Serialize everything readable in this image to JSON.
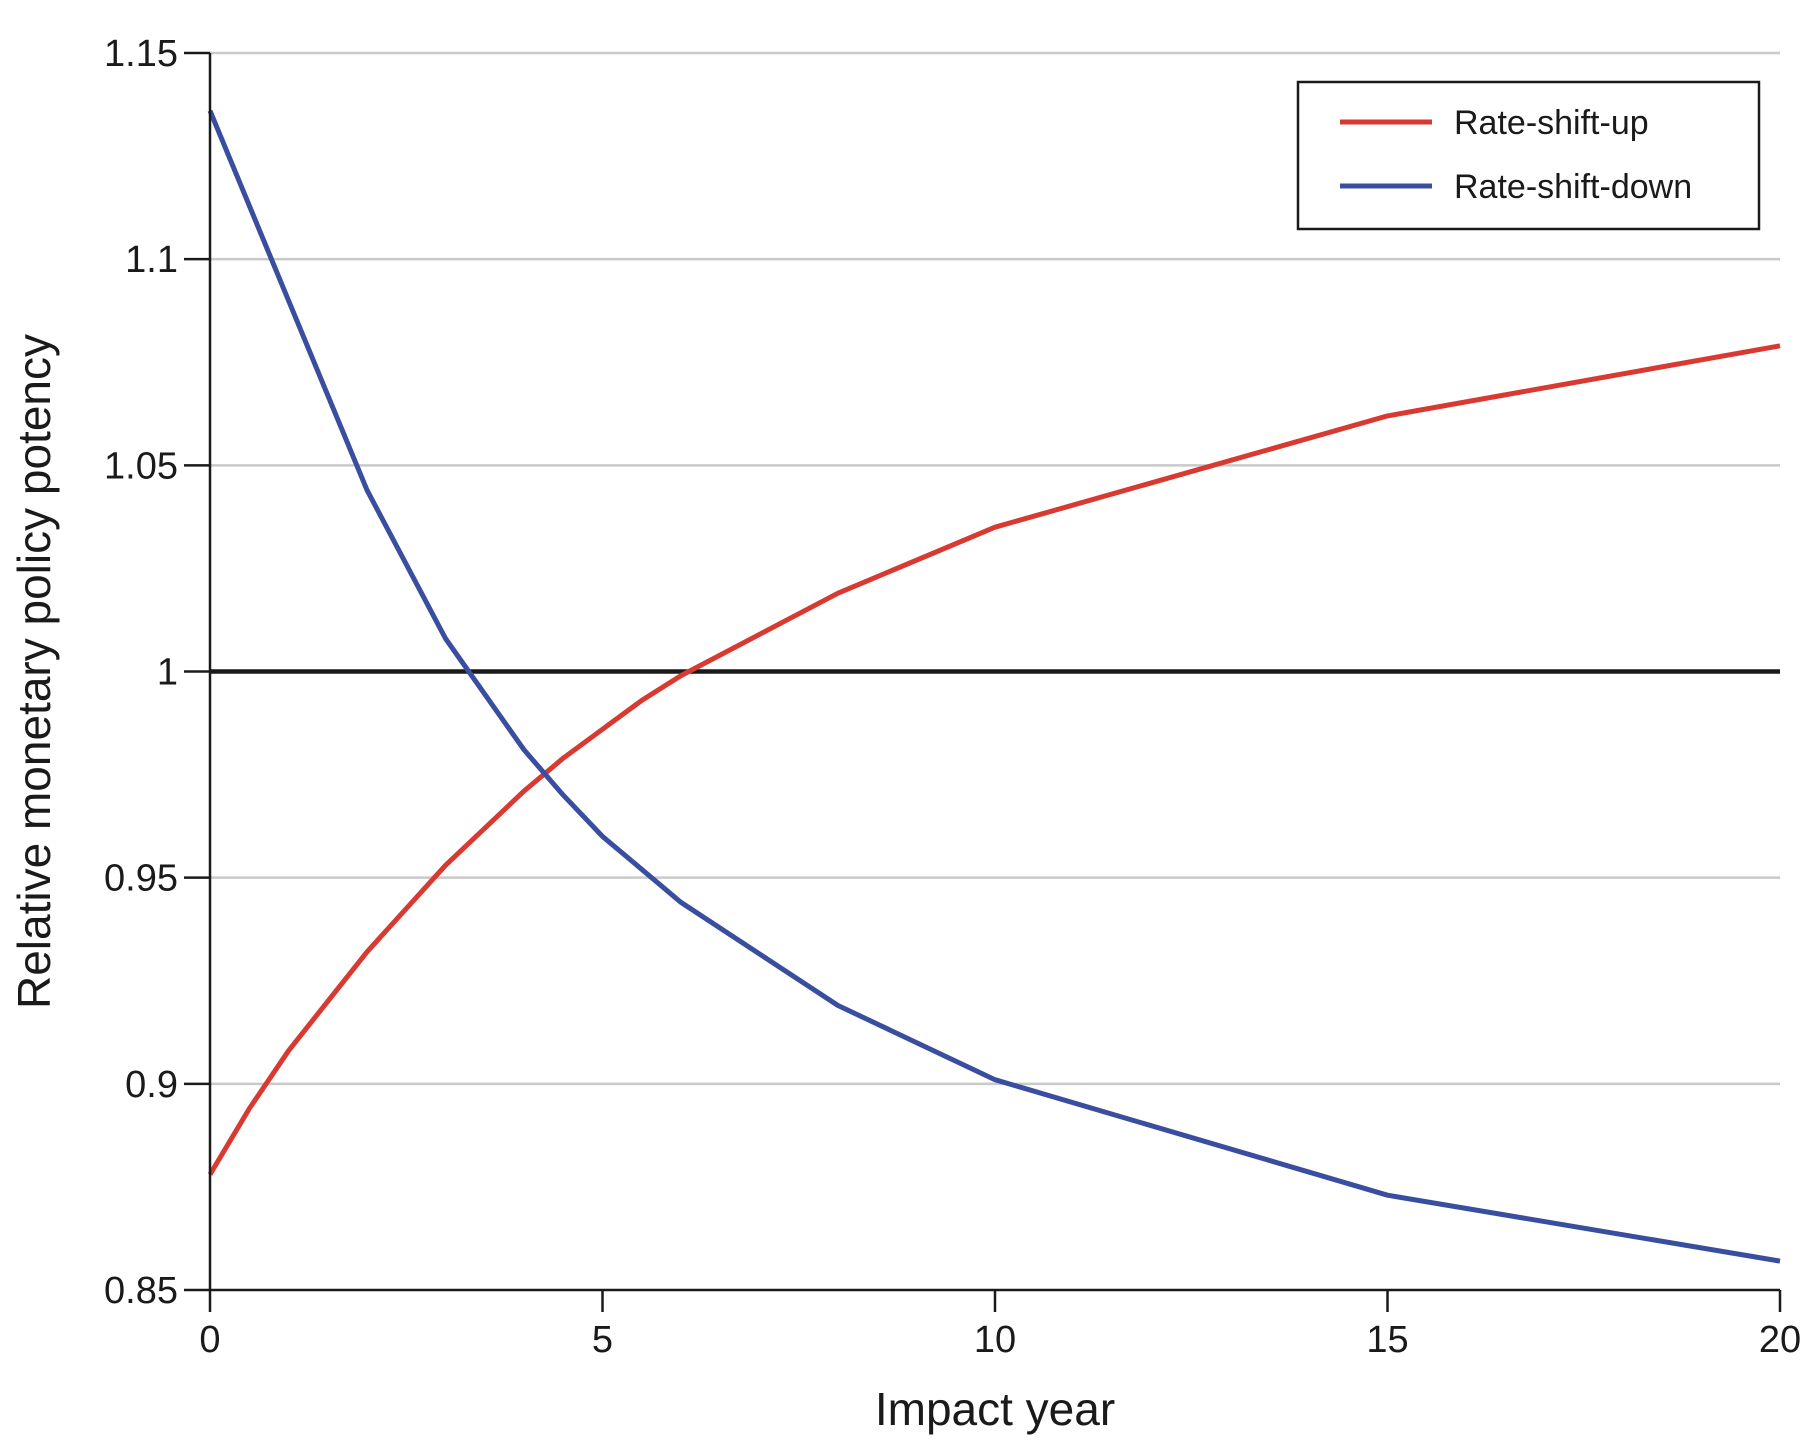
{
  "chart_data": {
    "type": "line",
    "xlabel": "Impact year",
    "ylabel": "Relative monetary policy potency",
    "xlim": [
      0,
      20
    ],
    "ylim": [
      0.85,
      1.15
    ],
    "xticks": [
      0,
      5,
      10,
      15,
      20
    ],
    "xtick_labels": [
      "0",
      "5",
      "10",
      "15",
      "20"
    ],
    "yticks": [
      0.85,
      0.9,
      0.95,
      1,
      1.05,
      1.1,
      1.15
    ],
    "ytick_labels": [
      "0.85",
      "0.9",
      "0.95",
      "1",
      "1.05",
      "1.1",
      "1.15"
    ],
    "grid": "horizontal",
    "reference_line": 1,
    "legend": {
      "position": "top-right"
    },
    "series": [
      {
        "name": "Rate-shift-up",
        "color": "#d83a32",
        "x": [
          0,
          0.5,
          1,
          2,
          3,
          4,
          4.5,
          5,
          5.5,
          6,
          8,
          10,
          15,
          20
        ],
        "y": [
          0.878,
          0.894,
          0.908,
          0.932,
          0.953,
          0.971,
          0.979,
          0.986,
          0.993,
          0.999,
          1.019,
          1.035,
          1.062,
          1.079
        ]
      },
      {
        "name": "Rate-shift-down",
        "color": "#3a4ea0",
        "x": [
          0,
          1,
          2,
          3,
          4,
          4.5,
          5,
          5.5,
          6,
          8,
          10,
          15,
          20
        ],
        "y": [
          1.136,
          1.09,
          1.044,
          1.008,
          0.981,
          0.97,
          0.96,
          0.952,
          0.944,
          0.919,
          0.901,
          0.873,
          0.857
        ]
      }
    ]
  }
}
